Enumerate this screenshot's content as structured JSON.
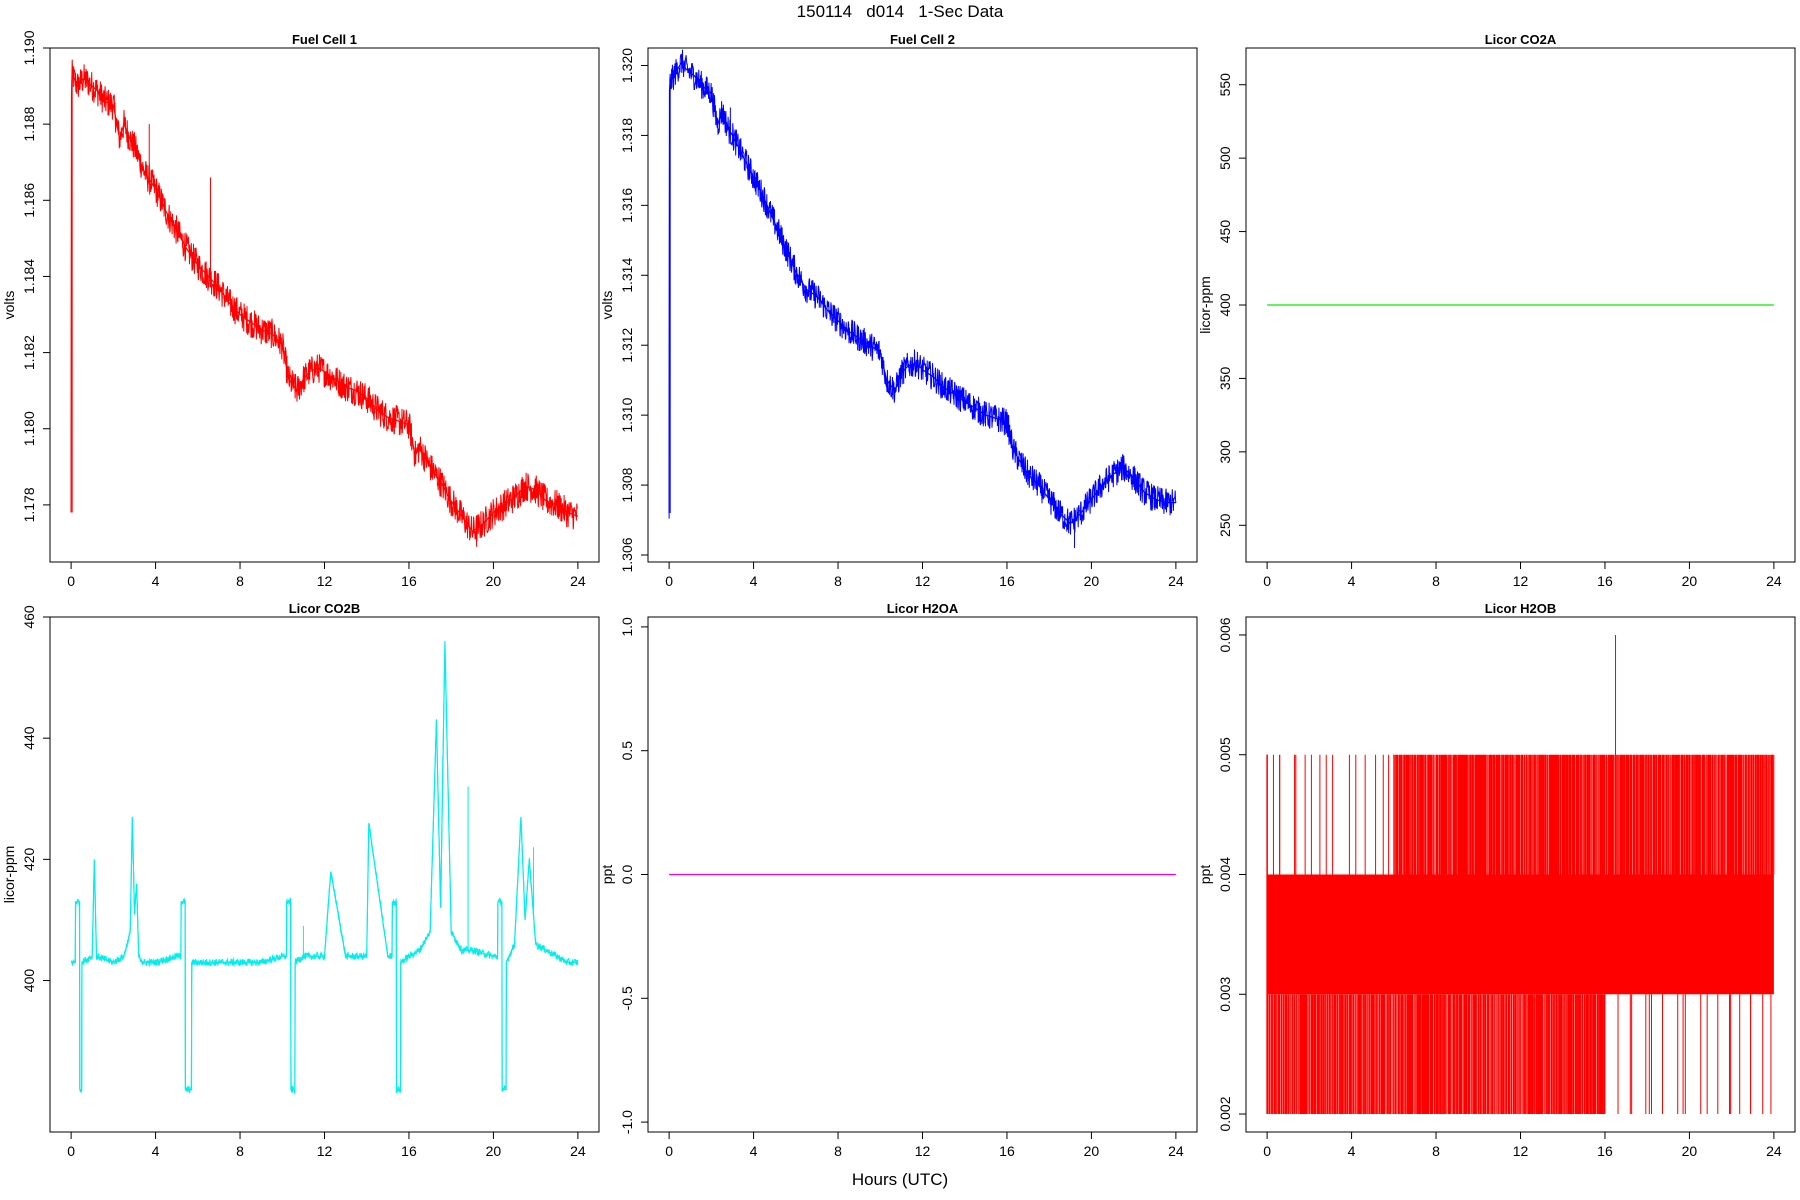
{
  "page": {
    "title": "150114   d014   1-Sec Data",
    "x_axis_label": "Hours (UTC)"
  },
  "chart_data": [
    {
      "type": "line",
      "title": "Fuel Cell 1",
      "xlabel": "",
      "ylabel": "volts",
      "xlim": [
        -1,
        25
      ],
      "ylim": [
        1.1765,
        1.19
      ],
      "xticks": [
        0,
        4,
        8,
        12,
        16,
        20,
        24
      ],
      "yticks": [
        1.178,
        1.18,
        1.182,
        1.184,
        1.186,
        1.188,
        1.19
      ],
      "ytick_labels": [
        "1.178",
        "1.180",
        "1.182",
        "1.184",
        "1.186",
        "1.188",
        "1.190"
      ],
      "color": "#ff0000",
      "series": [
        {
          "x": [
            0,
            0.02,
            0.05,
            0.3,
            0.6,
            0.8,
            1.2,
            1.6,
            2.0,
            2.3,
            2.5,
            2.8,
            3.0,
            3.5,
            4.0,
            4.5,
            5.0,
            5.5,
            6.0,
            6.5,
            7.0,
            7.5,
            8.0,
            8.5,
            9.0,
            9.5,
            10.0,
            10.3,
            10.7,
            11.0,
            11.3,
            11.7,
            12.0,
            12.5,
            13.0,
            13.5,
            14.0,
            14.5,
            15.0,
            15.5,
            16.0,
            16.3,
            16.5,
            17.0,
            17.5,
            18.0,
            18.5,
            19.0,
            19.5,
            20.0,
            20.5,
            21.0,
            21.5,
            22.0,
            22.5,
            23.0,
            23.5,
            24.0
          ],
          "y": [
            1.1778,
            1.1888,
            1.1893,
            1.189,
            1.1892,
            1.1891,
            1.1889,
            1.1886,
            1.1885,
            1.1876,
            1.188,
            1.1876,
            1.1874,
            1.1867,
            1.1863,
            1.1857,
            1.1852,
            1.1847,
            1.1843,
            1.184,
            1.1837,
            1.1833,
            1.183,
            1.1828,
            1.1826,
            1.1825,
            1.1822,
            1.1813,
            1.181,
            1.1813,
            1.1815,
            1.1816,
            1.1815,
            1.1813,
            1.1811,
            1.181,
            1.1808,
            1.1805,
            1.1803,
            1.1802,
            1.1801,
            1.1793,
            1.1795,
            1.179,
            1.1786,
            1.1781,
            1.1777,
            1.1773,
            1.1775,
            1.1778,
            1.178,
            1.1782,
            1.1785,
            1.1784,
            1.1781,
            1.178,
            1.1778,
            1.1777
          ],
          "noise": 0.0004,
          "spikes": [
            [
              6.6,
              1.1866
            ],
            [
              3.7,
              1.188
            ],
            [
              0.05,
              1.1778
            ],
            [
              19.2,
              1.1769
            ]
          ]
        }
      ]
    },
    {
      "type": "line",
      "title": "Fuel Cell 2",
      "xlabel": "",
      "ylabel": "volts",
      "xlim": [
        -1,
        25
      ],
      "ylim": [
        1.3058,
        1.3205
      ],
      "xticks": [
        0,
        4,
        8,
        12,
        16,
        20,
        24
      ],
      "yticks": [
        1.306,
        1.308,
        1.31,
        1.312,
        1.314,
        1.316,
        1.318,
        1.32
      ],
      "ytick_labels": [
        "1.306",
        "1.308",
        "1.310",
        "1.312",
        "1.314",
        "1.316",
        "1.318",
        "1.320"
      ],
      "color": "#0000ff",
      "series": [
        {
          "x": [
            0,
            0.02,
            0.05,
            0.3,
            0.6,
            0.8,
            1.2,
            1.6,
            2.0,
            2.3,
            2.5,
            2.8,
            3.0,
            3.5,
            4.0,
            4.5,
            5.0,
            5.5,
            6.0,
            6.5,
            7.0,
            7.5,
            8.0,
            8.5,
            9.0,
            9.5,
            10.0,
            10.3,
            10.7,
            11.0,
            11.3,
            11.7,
            12.0,
            12.5,
            13.0,
            13.5,
            14.0,
            14.5,
            15.0,
            15.5,
            16.0,
            16.3,
            16.5,
            17.0,
            17.5,
            18.0,
            18.5,
            19.0,
            19.5,
            20.0,
            20.5,
            21.0,
            21.5,
            22.0,
            22.5,
            23.0,
            23.5,
            24.0
          ],
          "y": [
            1.3072,
            1.3193,
            1.3195,
            1.3198,
            1.3201,
            1.3199,
            1.3197,
            1.3194,
            1.3192,
            1.3183,
            1.3187,
            1.3182,
            1.318,
            1.3174,
            1.3168,
            1.3162,
            1.3155,
            1.3148,
            1.3141,
            1.3136,
            1.3134,
            1.313,
            1.3127,
            1.3124,
            1.3122,
            1.312,
            1.3118,
            1.311,
            1.3107,
            1.3112,
            1.3114,
            1.3115,
            1.3113,
            1.3111,
            1.3108,
            1.3106,
            1.3104,
            1.3102,
            1.31,
            1.3099,
            1.3098,
            1.309,
            1.3088,
            1.3083,
            1.308,
            1.3076,
            1.3072,
            1.3069,
            1.3072,
            1.3076,
            1.308,
            1.3083,
            1.3085,
            1.3082,
            1.3078,
            1.3076,
            1.3075,
            1.3075
          ],
          "noise": 0.0004,
          "spikes": [
            [
              0.05,
              1.3072
            ],
            [
              19.2,
              1.3062
            ],
            [
              2.9,
              1.3188
            ]
          ]
        }
      ]
    },
    {
      "type": "line",
      "title": "Licor CO2A",
      "xlabel": "",
      "ylabel": "licor-ppm",
      "xlim": [
        -1,
        25
      ],
      "ylim": [
        225,
        575
      ],
      "xticks": [
        0,
        4,
        8,
        12,
        16,
        20,
        24
      ],
      "yticks": [
        250,
        300,
        350,
        400,
        450,
        500,
        550
      ],
      "ytick_labels": [
        "250",
        "300",
        "350",
        "400",
        "450",
        "500",
        "550"
      ],
      "color": "#00ee00",
      "series": [
        {
          "x": [
            0,
            24
          ],
          "y": [
            400,
            400
          ],
          "noise": 0,
          "spikes": []
        }
      ]
    },
    {
      "type": "line",
      "title": "Licor CO2B",
      "xlabel": "",
      "ylabel": "licor-ppm",
      "xlim": [
        -1,
        25
      ],
      "ylim": [
        375,
        460
      ],
      "xticks": [
        0,
        4,
        8,
        12,
        16,
        20,
        24
      ],
      "yticks": [
        400,
        420,
        440,
        460
      ],
      "ytick_labels": [
        "400",
        "420",
        "440",
        "460"
      ],
      "color": "#00eeee",
      "series": [
        {
          "x": [
            0,
            0.2,
            0.21,
            0.4,
            0.41,
            0.5,
            0.51,
            1.0,
            1.1,
            1.2,
            2.0,
            2.5,
            2.8,
            2.9,
            3.0,
            3.1,
            3.2,
            3.4,
            4.0,
            5.0,
            5.2,
            5.21,
            5.4,
            5.41,
            5.7,
            5.71,
            6.0,
            7.0,
            8.0,
            9.0,
            10.0,
            10.2,
            10.21,
            10.4,
            10.41,
            10.6,
            10.61,
            11.0,
            12.0,
            12.3,
            13.0,
            14.0,
            14.1,
            15.0,
            15.2,
            15.21,
            15.4,
            15.41,
            15.6,
            15.61,
            16.0,
            16.5,
            17.0,
            17.3,
            17.5,
            17.7,
            18.0,
            18.5,
            19.0,
            20.0,
            20.2,
            20.21,
            20.4,
            20.41,
            20.6,
            20.61,
            21.0,
            21.3,
            21.5,
            21.7,
            22.0,
            22.5,
            23.0,
            23.5,
            24.0
          ],
          "y": [
            403,
            403,
            413,
            413,
            382,
            382,
            403,
            404,
            420,
            404,
            403,
            404,
            408,
            427,
            411,
            416,
            404,
            403,
            403,
            404,
            404,
            413,
            413,
            382,
            382,
            403,
            403,
            403,
            403,
            403,
            404,
            404,
            413,
            413,
            382,
            382,
            403,
            404,
            404,
            418,
            404,
            404,
            426,
            404,
            404,
            413,
            413,
            382,
            382,
            403,
            404,
            405,
            408,
            443,
            412,
            456,
            408,
            405,
            405,
            404,
            404,
            413,
            413,
            382,
            382,
            403,
            406,
            427,
            410,
            420,
            406,
            405,
            404,
            403,
            403
          ],
          "noise": 0.6,
          "spikes": [
            [
              17.6,
              437
            ],
            [
              18.8,
              432
            ],
            [
              21.9,
              422
            ],
            [
              11.0,
              409
            ]
          ]
        }
      ]
    },
    {
      "type": "line",
      "title": "Licor H2OA",
      "xlabel": "",
      "ylabel": "ppt",
      "xlim": [
        -1,
        25
      ],
      "ylim": [
        -1.04,
        1.04
      ],
      "xticks": [
        0,
        4,
        8,
        12,
        16,
        20,
        24
      ],
      "yticks": [
        -1.0,
        -0.5,
        0.0,
        0.5,
        1.0
      ],
      "ytick_labels": [
        "-1.0",
        "-0.5",
        "0.0",
        "0.5",
        "1.0"
      ],
      "color": "#ee00ee",
      "series": [
        {
          "x": [
            0,
            24
          ],
          "y": [
            0,
            0
          ],
          "noise": 0,
          "spikes": []
        }
      ]
    },
    {
      "type": "line",
      "title": "Licor H2OB",
      "xlabel": "",
      "ylabel": "ppt",
      "xlim": [
        -1,
        25
      ],
      "ylim": [
        0.00185,
        0.00615
      ],
      "xticks": [
        0,
        4,
        8,
        12,
        16,
        20,
        24
      ],
      "yticks": [
        0.002,
        0.003,
        0.004,
        0.005,
        0.006
      ],
      "ytick_labels": [
        "0.002",
        "0.003",
        "0.004",
        "0.005",
        "0.006"
      ],
      "color": "#ff0000",
      "series": [
        {
          "band": [
            0.003,
            0.004
          ],
          "x": [
            0,
            24
          ],
          "y": [
            0.003,
            0.004
          ],
          "up_spikes": [
            [
              0.0,
              0.005
            ],
            [
              0.6,
              0.005
            ],
            [
              1.3,
              0.005
            ],
            [
              2.5,
              0.005
            ],
            [
              4.2,
              0.005
            ],
            [
              5.5,
              0.005
            ],
            [
              6.3,
              0.005
            ],
            [
              16.5,
              0.006
            ]
          ],
          "up_dense_start": 6.0,
          "down_dense_end": 16.0,
          "down_spikes": [
            [
              17.2,
              0.002
            ],
            [
              18.1,
              0.002
            ],
            [
              19.7,
              0.002
            ],
            [
              21.9,
              0.002
            ],
            [
              22.9,
              0.002
            ]
          ]
        }
      ]
    }
  ]
}
